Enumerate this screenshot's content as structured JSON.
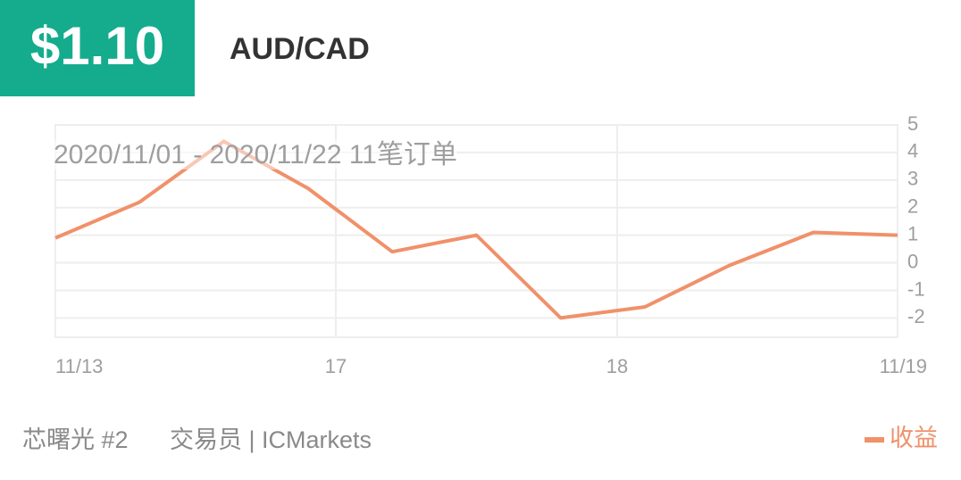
{
  "header": {
    "price": "$1.10",
    "pair": "AUD/CAD"
  },
  "chart_data": {
    "type": "line",
    "subtitle": "2020/11/01 - 2020/11/22  11笔订单",
    "x": [
      0,
      1,
      2,
      3,
      4,
      5,
      6,
      7,
      8,
      9,
      10
    ],
    "xlim": [
      0,
      10
    ],
    "xticks": [
      {
        "value": 0,
        "label": "11/13"
      },
      {
        "value": 3.33,
        "label": "17"
      },
      {
        "value": 6.67,
        "label": "18"
      },
      {
        "value": 10,
        "label": "11/19"
      }
    ],
    "ylim": [
      -2.7,
      5
    ],
    "yticks": [
      5,
      4,
      3,
      2,
      1,
      0,
      -1,
      -2
    ],
    "grid": true,
    "legend": "bottom-right",
    "series": [
      {
        "name": "收益",
        "color": "#f0916a",
        "values": [
          0.9,
          2.2,
          4.4,
          2.7,
          0.4,
          1.0,
          -2.0,
          -1.6,
          -0.1,
          1.1,
          1.0
        ]
      }
    ]
  },
  "footer": {
    "trader": "芯曙光 #2",
    "broker": "交易员 | ICMarkets"
  }
}
